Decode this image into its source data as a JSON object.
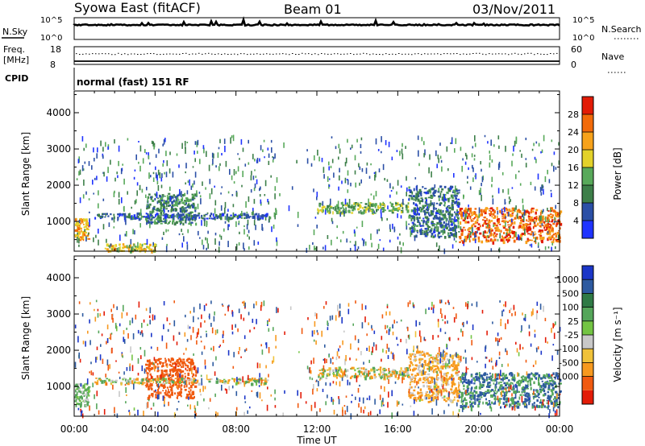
{
  "header": {
    "title": "Syowa East (fitACF)",
    "beam": "Beam 01",
    "date": "03/Nov/2011"
  },
  "top_panels": {
    "nsky_label": "N.Sky",
    "nsky_ticks": [
      "10^5",
      "10^0"
    ],
    "nsearch_label": "N.Search",
    "nsearch_ticks": [
      "10^5",
      "10^0"
    ],
    "freq_label": "Freq.",
    "freq_unit": "[MHz]",
    "freq_ticks": [
      "18",
      "8"
    ],
    "nave_label": "Nave",
    "nave_ticks": [
      "60",
      "0"
    ],
    "cpid_label": "CPID",
    "cpid_value": "normal (fast) 151 RF"
  },
  "colors": {
    "power_scale": [
      "#1f33ff",
      "#2b4fa6",
      "#3d7f49",
      "#58a95a",
      "#e3d22a",
      "#f7a21a",
      "#f26a0a",
      "#e21b06"
    ],
    "velocity_scale": [
      "#1b36c8",
      "#2d5aa0",
      "#2f7a45",
      "#55a65a",
      "#73c443",
      "#c8c8c8",
      "#f0c23a",
      "#f7991f",
      "#f05a10",
      "#e31c08"
    ]
  },
  "chart_data": [
    {
      "type": "heatmap",
      "name": "power",
      "x_axis": {
        "label": "Time UT",
        "ticks": [
          "00:00",
          "04:00",
          "08:00",
          "12:00",
          "16:00",
          "20:00",
          "00:00"
        ],
        "range_hours": [
          0,
          24
        ]
      },
      "y_axis": {
        "label": "Slant Range [km]",
        "ticks": [
          1000,
          2000,
          3000,
          4000
        ],
        "range": [
          180,
          4600
        ]
      },
      "colorbar": {
        "label": "Power [dB]",
        "ticks": [
          "4",
          "8",
          "12",
          "16",
          "20",
          "24",
          "28"
        ],
        "range": [
          0,
          32
        ]
      },
      "features": [
        {
          "hours": [
            0,
            0.7
          ],
          "range_km": [
            500,
            1100
          ],
          "value": 22
        },
        {
          "hours": [
            1.5,
            4
          ],
          "range_km": [
            200,
            400
          ],
          "value": 20
        },
        {
          "hours": [
            3.5,
            6
          ],
          "range_km": [
            950,
            1800
          ],
          "value": 10
        },
        {
          "hours": [
            1,
            9.5
          ],
          "range_km": [
            1100,
            1250
          ],
          "value": 6
        },
        {
          "hours": [
            12,
            16.5
          ],
          "range_km": [
            1250,
            1550
          ],
          "value": 14
        },
        {
          "hours": [
            16.5,
            19
          ],
          "range_km": [
            600,
            2000
          ],
          "value": 8
        },
        {
          "hours": [
            19,
            24
          ],
          "range_km": [
            450,
            1400
          ],
          "value": 26
        }
      ]
    },
    {
      "type": "heatmap",
      "name": "velocity",
      "x_axis": {
        "label": "Time UT",
        "ticks": [
          "00:00",
          "04:00",
          "08:00",
          "12:00",
          "16:00",
          "20:00",
          "00:00"
        ],
        "range_hours": [
          0,
          24
        ]
      },
      "y_axis": {
        "label": "Slant Range [km]",
        "ticks": [
          1000,
          2000,
          3000,
          4000
        ],
        "range": [
          180,
          4600
        ]
      },
      "colorbar": {
        "label": "Velocity [m s⁻¹]",
        "ticks": [
          "1000",
          "500",
          "100",
          "25",
          "-25",
          "-100",
          "-500",
          "-1000"
        ]
      },
      "features": [
        {
          "hours": [
            0,
            0.7
          ],
          "range_km": [
            500,
            1100
          ],
          "value": 100
        },
        {
          "hours": [
            3.5,
            6
          ],
          "range_km": [
            700,
            1800
          ],
          "value": -500
        },
        {
          "hours": [
            1,
            9.5
          ],
          "range_km": [
            1100,
            1250
          ],
          "value": 0
        },
        {
          "hours": [
            12,
            16.5
          ],
          "range_km": [
            1250,
            1550
          ],
          "value": 0
        },
        {
          "hours": [
            16.5,
            19
          ],
          "range_km": [
            600,
            2000
          ],
          "value": -100
        },
        {
          "hours": [
            19,
            24
          ],
          "range_km": [
            450,
            1400
          ],
          "value": 300
        }
      ]
    }
  ]
}
